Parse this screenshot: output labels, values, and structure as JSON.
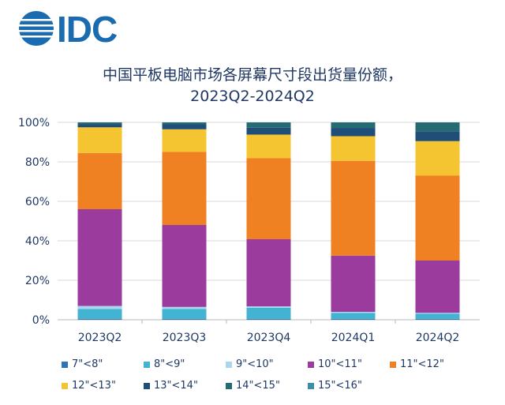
{
  "brand": {
    "logo_text": "IDC",
    "logo_color": "#1b6bb0"
  },
  "chart_data": {
    "type": "bar",
    "stacked": true,
    "title_line1": "中国平板电脑市场各屏幕尺寸段出货量份额，",
    "title_line2": "2023Q2-2024Q2",
    "xlabel": "",
    "ylabel": "",
    "ylim": [
      0,
      100
    ],
    "y_ticks": [
      "0%",
      "20%",
      "40%",
      "60%",
      "80%",
      "100%"
    ],
    "grid": true,
    "legend_position": "bottom",
    "categories": [
      "2023Q2",
      "2023Q3",
      "2023Q4",
      "2024Q1",
      "2024Q2"
    ],
    "series": [
      {
        "name": "7\"<8\"",
        "color": "#2e75b6",
        "values": [
          0.5,
          0.5,
          0.5,
          0.5,
          0.5
        ]
      },
      {
        "name": "8\"<9\"",
        "color": "#42b4d2",
        "values": [
          5,
          5,
          5.5,
          3,
          2.5
        ]
      },
      {
        "name": "9\"<10\"",
        "color": "#a9d7ef",
        "values": [
          1.5,
          1,
          0.8,
          0.5,
          0.5
        ]
      },
      {
        "name": "10\"<11\"",
        "color": "#9b3b9e",
        "values": [
          49,
          41.5,
          34,
          28.5,
          26.5
        ]
      },
      {
        "name": "11\"<12\"",
        "color": "#f08122",
        "values": [
          28.5,
          37,
          41,
          48,
          43
        ]
      },
      {
        "name": "12\"<13\"",
        "color": "#f5c431",
        "values": [
          13,
          11.5,
          12,
          12.5,
          17.5
        ]
      },
      {
        "name": "13\"<14\"",
        "color": "#1f4e79",
        "values": [
          1.5,
          2.5,
          3.5,
          4,
          5
        ]
      },
      {
        "name": "14\"<15\"",
        "color": "#256b72",
        "values": [
          1,
          1,
          2.7,
          3,
          4.5
        ]
      },
      {
        "name": "15\"<16\"",
        "color": "#3a8fa6",
        "values": [
          0,
          0,
          0,
          0,
          0
        ]
      }
    ]
  }
}
